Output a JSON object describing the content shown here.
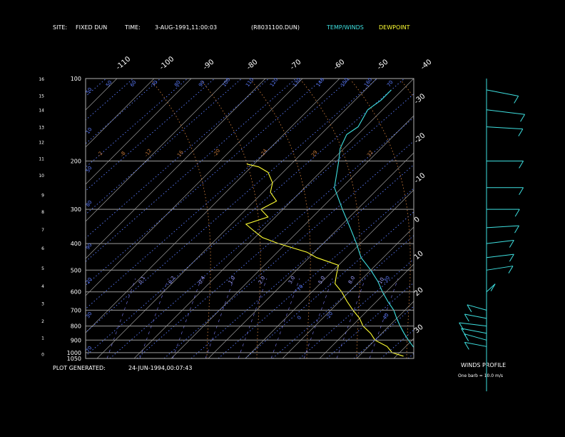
{
  "header": {
    "site_label": "SITE:",
    "site_value": "FIXED DUN",
    "time_label": "TIME:",
    "time_value": "3-AUG-1991,11:00:03",
    "file_value": "(R8031100.DUN)",
    "temp_legend": "TEMP/WINDS",
    "dew_legend": "DEWPOINT"
  },
  "footer": {
    "plot_generated_label": "PLOT GENERATED:",
    "plot_generated_value": "24-JUN-1994,00:07:43"
  },
  "winds_panel": {
    "title": "WINDS PROFILE",
    "note": "One barb = 10.0 m/s"
  },
  "colors": {
    "background": "#000000",
    "temp": "#3ee0e0",
    "dewpoint": "#ffff33",
    "isotherm": "#9a9a9a",
    "isobar": "#9a9a9a",
    "dry_adiabat": "#5c7cff",
    "moist_adiabat": "#c87a3a",
    "mixing_ratio": "#8080ff"
  },
  "chart_data": {
    "type": "line",
    "title": "",
    "xlabel": "",
    "ylabel": "",
    "pressure_range_hpa": [
      1050,
      100
    ],
    "temperature_skew_labels_c": [
      "-110",
      "-100",
      "-90",
      "-80",
      "-70",
      "-60",
      "-50",
      "-40"
    ],
    "temperature_right_labels_c": [
      "-30",
      "-20",
      "-10",
      "0",
      "10",
      "20",
      "30"
    ],
    "pressure_labels": [
      "100",
      "200",
      "300",
      "400",
      "500",
      "600",
      "700",
      "800",
      "900",
      "1000",
      "1050"
    ],
    "height_labels_km": [
      "16",
      "15",
      "14",
      "13",
      "12",
      "11",
      "10",
      "9",
      "8",
      "7",
      "6",
      "5",
      "4",
      "3",
      "2",
      "1",
      "0"
    ],
    "dry_adiabat_labels": [
      "50",
      "50",
      "60",
      "70",
      "80",
      "90",
      "100",
      "110",
      "120",
      "130",
      "140",
      "150",
      "160",
      "70",
      "10",
      "50",
      "80",
      "90",
      "20",
      "30",
      "70",
      "70",
      "0",
      "-20",
      "-30",
      "40"
    ],
    "moist_adiabat_labels": [
      "-2",
      "-8",
      "-12",
      "16",
      "-20",
      "-24",
      "29",
      "32"
    ],
    "mixing_ratio_labels": [
      "0.1",
      "0.2",
      "0.4",
      "1.0",
      "2.0",
      "3.0",
      "5.0",
      "8.0",
      "10"
    ],
    "series": [
      {
        "name": "TEMP/WINDS",
        "points_p_t": [
          [
            1030,
            17
          ],
          [
            1000,
            15
          ],
          [
            950,
            12
          ],
          [
            900,
            9
          ],
          [
            850,
            6
          ],
          [
            800,
            3
          ],
          [
            750,
            0
          ],
          [
            700,
            -3
          ],
          [
            650,
            -7
          ],
          [
            600,
            -11
          ],
          [
            550,
            -15
          ],
          [
            500,
            -20
          ],
          [
            450,
            -26
          ],
          [
            400,
            -31
          ],
          [
            350,
            -37
          ],
          [
            300,
            -44
          ],
          [
            250,
            -52
          ],
          [
            200,
            -58
          ],
          [
            180,
            -61
          ],
          [
            160,
            -63
          ],
          [
            150,
            -62
          ],
          [
            130,
            -64
          ],
          [
            120,
            -63
          ],
          [
            110,
            -63
          ]
        ]
      },
      {
        "name": "DEWPOINT",
        "points_p_t": [
          [
            1030,
            12
          ],
          [
            1000,
            8
          ],
          [
            950,
            5
          ],
          [
            900,
            0
          ],
          [
            850,
            -3
          ],
          [
            800,
            -7
          ],
          [
            750,
            -10
          ],
          [
            700,
            -14
          ],
          [
            650,
            -18
          ],
          [
            600,
            -22
          ],
          [
            560,
            -26
          ],
          [
            520,
            -28
          ],
          [
            480,
            -30
          ],
          [
            450,
            -38
          ],
          [
            430,
            -42
          ],
          [
            400,
            -52
          ],
          [
            380,
            -58
          ],
          [
            360,
            -62
          ],
          [
            340,
            -66
          ],
          [
            320,
            -62
          ],
          [
            300,
            -66
          ],
          [
            280,
            -64
          ],
          [
            260,
            -68
          ],
          [
            240,
            -70
          ],
          [
            220,
            -74
          ],
          [
            210,
            -78
          ],
          [
            205,
            -82
          ]
        ]
      }
    ],
    "wind_profile": [
      {
        "p": 110,
        "dir": 300,
        "spd": 30
      },
      {
        "p": 130,
        "dir": 290,
        "spd": 35
      },
      {
        "p": 150,
        "dir": 280,
        "spd": 30
      },
      {
        "p": 200,
        "dir": 270,
        "spd": 30
      },
      {
        "p": 250,
        "dir": 270,
        "spd": 30
      },
      {
        "p": 300,
        "dir": 270,
        "spd": 25
      },
      {
        "p": 350,
        "dir": 260,
        "spd": 25
      },
      {
        "p": 400,
        "dir": 250,
        "spd": 20
      },
      {
        "p": 450,
        "dir": 250,
        "spd": 20
      },
      {
        "p": 500,
        "dir": 245,
        "spd": 20
      },
      {
        "p": 600,
        "dir": 200,
        "spd": 15
      },
      {
        "p": 700,
        "dir": 130,
        "spd": 15
      },
      {
        "p": 750,
        "dir": 120,
        "spd": 15
      },
      {
        "p": 800,
        "dir": 110,
        "spd": 20
      },
      {
        "p": 850,
        "dir": 120,
        "spd": 20
      },
      {
        "p": 900,
        "dir": 130,
        "spd": 20
      },
      {
        "p": 950,
        "dir": 120,
        "spd": 15
      }
    ]
  }
}
